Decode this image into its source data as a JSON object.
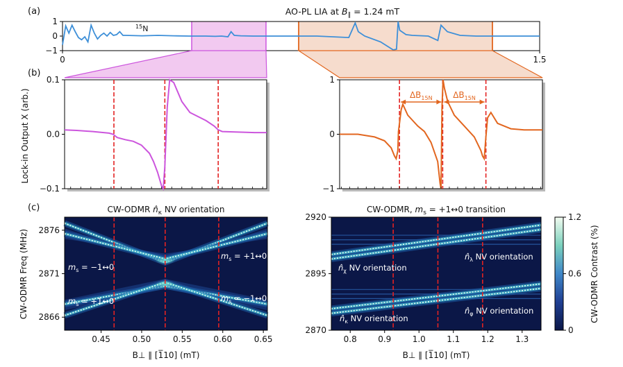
{
  "colors": {
    "line_top": "#3d8fd8",
    "magenta": "#cc55dd",
    "magenta_fill": "#f2c9f0",
    "orange": "#e2661f",
    "orange_fill": "#f6dccd",
    "red_dash": "#e32222",
    "map_bg": "#0b1747"
  },
  "chart_data": [
    {
      "id": "a",
      "type": "line",
      "panel_label": "(a)",
      "title": "AO-PL LIA at B∥ = 1.24 mT",
      "title_prefix": "AO-PL LIA at ",
      "title_var": "B",
      "title_sub": "∥",
      "title_suffix": " = 1.24 mT",
      "annotation": "15N",
      "ann_sup": "15",
      "ann_base": "N",
      "xlim": [
        0,
        1.5
      ],
      "ylim": [
        -1,
        1
      ],
      "xticks": [
        0,
        0.5,
        1,
        1.5
      ],
      "xtick_labels": [
        "0",
        "0.5",
        "1",
        "1.5"
      ],
      "yticks": [
        1,
        0,
        -1
      ],
      "ytick_labels": [
        "1",
        "0",
        "−1"
      ],
      "highlight_regions": [
        {
          "x": [
            0.405,
            0.655
          ],
          "color": "magenta"
        },
        {
          "x": [
            0.745,
            1.355
          ],
          "color": "orange"
        }
      ],
      "series": [
        {
          "name": "Lock-in X",
          "color": "line_top",
          "x": [
            0,
            0.01,
            0.02,
            0.03,
            0.04,
            0.05,
            0.06,
            0.07,
            0.08,
            0.09,
            0.1,
            0.11,
            0.12,
            0.13,
            0.14,
            0.15,
            0.16,
            0.17,
            0.18,
            0.19,
            0.2,
            0.25,
            0.3,
            0.35,
            0.4,
            0.45,
            0.48,
            0.5,
            0.52,
            0.53,
            0.54,
            0.56,
            0.6,
            0.7,
            0.8,
            0.9,
            0.92,
            0.93,
            0.95,
            1.0,
            1.04,
            1.05,
            1.055,
            1.06,
            1.08,
            1.1,
            1.15,
            1.18,
            1.19,
            1.21,
            1.25,
            1.3,
            1.4,
            1.5
          ],
          "y": [
            -0.6,
            0.7,
            0.2,
            0.75,
            0.3,
            -0.1,
            -0.25,
            -0.05,
            -0.4,
            0.75,
            0.2,
            -0.2,
            0.05,
            0.2,
            0,
            0.25,
            0.05,
            0.1,
            0.3,
            0.05,
            0.05,
            0.02,
            0.05,
            0.02,
            0,
            0,
            -0.02,
            0,
            -0.05,
            0.3,
            0.05,
            0.02,
            0,
            0,
            0,
            -0.1,
            0.9,
            0.3,
            0,
            -0.4,
            -0.95,
            -0.9,
            1,
            0.4,
            0.1,
            0.05,
            0,
            -0.3,
            0.75,
            0.3,
            0.05,
            0,
            0,
            0
          ]
        }
      ]
    },
    {
      "id": "b1",
      "type": "line",
      "panel_label": "(b)",
      "ylabel": "Lock-in Output X (arb.)",
      "xlim": [
        0.405,
        0.655
      ],
      "ylim": [
        -0.1,
        0.1
      ],
      "yticks": [
        0.1,
        0,
        -0.1
      ],
      "ytick_labels": [
        "0.1",
        "0.0",
        "−0.1"
      ],
      "vlines": [
        0.466,
        0.529,
        0.595
      ],
      "series": [
        {
          "color": "magenta",
          "x": [
            0.405,
            0.42,
            0.44,
            0.46,
            0.465,
            0.47,
            0.48,
            0.49,
            0.5,
            0.51,
            0.515,
            0.52,
            0.525,
            0.527,
            0.529,
            0.532,
            0.535,
            0.54,
            0.55,
            0.56,
            0.58,
            0.59,
            0.595,
            0.6,
            0.62,
            0.64,
            0.655
          ],
          "y": [
            0.008,
            0.007,
            0.005,
            0.002,
            0,
            -0.006,
            -0.01,
            -0.013,
            -0.02,
            -0.035,
            -0.05,
            -0.07,
            -0.095,
            -0.1,
            -0.06,
            0.05,
            0.1,
            0.095,
            0.06,
            0.04,
            0.025,
            0.015,
            0.008,
            0.005,
            0.004,
            0.003,
            0.003
          ]
        }
      ]
    },
    {
      "id": "b2",
      "type": "line",
      "xlim": [
        0.745,
        1.355
      ],
      "ylim": [
        -1,
        1
      ],
      "yticks": [
        1,
        0,
        -1
      ],
      "ytick_labels": [
        "1",
        "0",
        "−1"
      ],
      "vlines": [
        0.925,
        1.055,
        1.185
      ],
      "annotations": [
        {
          "text": "ΔB15N",
          "var": "ΔB",
          "sub": "15N",
          "from": 0.925,
          "to": 1.055
        },
        {
          "text": "ΔB15N",
          "var": "ΔB",
          "sub": "15N",
          "from": 1.055,
          "to": 1.185
        }
      ],
      "series": [
        {
          "color": "orange",
          "x": [
            0.745,
            0.8,
            0.85,
            0.88,
            0.9,
            0.91,
            0.915,
            0.92,
            0.922,
            0.93,
            0.935,
            0.95,
            0.98,
            1.0,
            1.02,
            1.04,
            1.047,
            1.05,
            1.053,
            1.056,
            1.06,
            1.07,
            1.09,
            1.12,
            1.15,
            1.17,
            1.175,
            1.18,
            1.185,
            1.19,
            1.2,
            1.22,
            1.26,
            1.3,
            1.355
          ],
          "y": [
            0,
            0,
            -0.05,
            -0.12,
            -0.25,
            -0.4,
            -0.45,
            -0.3,
            0.05,
            0.45,
            0.55,
            0.35,
            0.15,
            0.05,
            -0.15,
            -0.5,
            -0.9,
            -1,
            0.5,
            1,
            0.85,
            0.6,
            0.35,
            0.15,
            -0.05,
            -0.3,
            -0.4,
            -0.45,
            -0.05,
            0.3,
            0.4,
            0.2,
            0.1,
            0.08,
            0.08
          ]
        }
      ]
    },
    {
      "id": "c1",
      "type": "heatmap",
      "panel_label": "(c)",
      "title": "CW-ODMR  n̂κ NV orientation",
      "title_prefix": "CW-ODMR  ",
      "title_var": "n̂",
      "title_sub": "κ",
      "title_suffix": " NV orientation",
      "xlabel": "B⊥ ∥ [1̅10] (mT)",
      "ylabel": "CW-ODMR Freq (MHz)",
      "xlim": [
        0.405,
        0.655
      ],
      "ylim": [
        2864.5,
        2877.5
      ],
      "xticks": [
        0.45,
        0.5,
        0.55,
        0.6,
        0.65
      ],
      "xtick_labels": [
        "0.45",
        "0.50",
        "0.55",
        "0.60",
        "0.65"
      ],
      "yticks": [
        2876,
        2871,
        2866
      ],
      "ytick_labels": [
        "2876",
        "2871",
        "2866"
      ],
      "vlines": [
        0.466,
        0.529,
        0.595
      ],
      "labels": [
        "ms = −1↔0",
        "ms = +1↔0",
        "ms = +1↔0",
        "ms = −1↔0"
      ],
      "label_parts": [
        {
          "a": "m",
          "s": "s",
          "b": " = −1↔0"
        },
        {
          "a": "m",
          "s": "s",
          "b": " = +1↔0"
        },
        {
          "a": "m",
          "s": "s",
          "b": " = +1↔0"
        },
        {
          "a": "m",
          "s": "s",
          "b": " = −1↔0"
        }
      ],
      "transitions": [
        {
          "x": [
            0.405,
            0.529,
            0.655
          ],
          "y": [
            2876.8,
            2872.3,
            2876.8
          ]
        },
        {
          "x": [
            0.405,
            0.529,
            0.655
          ],
          "y": [
            2875.6,
            2872.7,
            2875.6
          ]
        },
        {
          "x": [
            0.405,
            0.529,
            0.655
          ],
          "y": [
            2867.5,
            2869.6,
            2867.5
          ]
        },
        {
          "x": [
            0.405,
            0.529,
            0.655
          ],
          "y": [
            2866.2,
            2870.0,
            2866.2
          ]
        }
      ]
    },
    {
      "id": "c2",
      "type": "heatmap",
      "title": "CW-ODMR, ms = +1↔0 transition",
      "title_prefix": "CW-ODMR, ",
      "title_var": "m",
      "title_sub": "s",
      "title_suffix": " = +1↔0 transition",
      "xlabel": "B⊥ ∥ [1̅10] (mT)",
      "xlim": [
        0.745,
        1.355
      ],
      "ylim": [
        2870,
        2920
      ],
      "xticks": [
        0.8,
        0.9,
        1.0,
        1.1,
        1.2,
        1.3
      ],
      "xtick_labels": [
        "0.8",
        "0.9",
        "1.0",
        "1.1",
        "1.2",
        "1.3"
      ],
      "yticks": [
        2920,
        2895,
        2870
      ],
      "ytick_labels": [
        "2920",
        "2895",
        "2870"
      ],
      "vlines": [
        0.925,
        1.055,
        1.185
      ],
      "labels": [
        "n̂χ NV orientation",
        "n̂λ NV orientation",
        "n̂κ NV orientation",
        "n̂φ NV orientation"
      ],
      "label_parts": [
        {
          "a": "n̂",
          "s": "χ",
          "b": " NV orientation"
        },
        {
          "a": "n̂",
          "s": "λ",
          "b": " NV orientation"
        },
        {
          "a": "n̂",
          "s": "κ",
          "b": " NV orientation"
        },
        {
          "a": "n̂",
          "s": "φ",
          "b": " NV orientation"
        }
      ],
      "transitions": [
        {
          "x": [
            0.745,
            1.355
          ],
          "y": [
            2903.5,
            2916.5
          ]
        },
        {
          "x": [
            0.745,
            1.355
          ],
          "y": [
            2901.5,
            2914.5
          ]
        },
        {
          "x": [
            0.745,
            1.355
          ],
          "y": [
            2879.5,
            2890.5
          ]
        },
        {
          "x": [
            0.745,
            1.355
          ],
          "y": [
            2877.5,
            2888.5
          ]
        }
      ],
      "flat_lines_y": [
        2912,
        2910,
        2908,
        2888,
        2886,
        2884
      ],
      "colorbar": {
        "label": "CW-ODMR Contrast (%)",
        "range": [
          0,
          1.2
        ],
        "ticks": [
          1.2,
          0.6,
          0
        ],
        "tick_labels": [
          "1.2",
          "0.6",
          "0"
        ]
      }
    }
  ]
}
